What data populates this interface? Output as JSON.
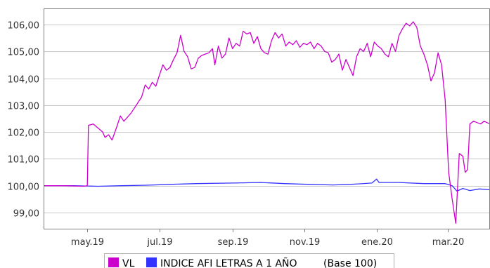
{
  "chart_data": {
    "type": "line",
    "title": "",
    "xlabel": "",
    "ylabel": "",
    "ylim": [
      98.4,
      106.6
    ],
    "y_ticks": [
      "99,00",
      "100,00",
      "101,00",
      "102,00",
      "103,00",
      "104,00",
      "105,00",
      "106,00"
    ],
    "x_range": [
      "2019-03-25",
      "2020-04-06"
    ],
    "x_ticks": [
      {
        "label": "may.19",
        "date": "2019-05-01"
      },
      {
        "label": "jul.19",
        "date": "2019-07-01"
      },
      {
        "label": "sep.19",
        "date": "2019-09-01"
      },
      {
        "label": "nov.19",
        "date": "2019-11-01"
      },
      {
        "label": "ene.20",
        "date": "2020-01-01"
      },
      {
        "label": "mar.20",
        "date": "2020-03-01"
      }
    ],
    "grid": "horizontal",
    "legend_position": "bottom",
    "legend_note": "(Base 100)",
    "series": [
      {
        "name": "VL",
        "color": "#CC00CC",
        "points": [
          [
            "2019-03-25",
            100.0
          ],
          [
            "2019-04-10",
            100.0
          ],
          [
            "2019-04-28",
            99.98
          ],
          [
            "2019-05-01",
            100.0
          ],
          [
            "2019-05-02",
            102.25
          ],
          [
            "2019-05-06",
            102.3
          ],
          [
            "2019-05-10",
            102.15
          ],
          [
            "2019-05-14",
            102.0
          ],
          [
            "2019-05-16",
            101.8
          ],
          [
            "2019-05-19",
            101.9
          ],
          [
            "2019-05-22",
            101.7
          ],
          [
            "2019-05-26",
            102.2
          ],
          [
            "2019-05-29",
            102.6
          ],
          [
            "2019-06-01",
            102.4
          ],
          [
            "2019-06-04",
            102.55
          ],
          [
            "2019-06-07",
            102.7
          ],
          [
            "2019-06-10",
            102.9
          ],
          [
            "2019-06-13",
            103.1
          ],
          [
            "2019-06-16",
            103.3
          ],
          [
            "2019-06-19",
            103.75
          ],
          [
            "2019-06-22",
            103.6
          ],
          [
            "2019-06-25",
            103.85
          ],
          [
            "2019-06-28",
            103.7
          ],
          [
            "2019-07-01",
            104.1
          ],
          [
            "2019-07-04",
            104.5
          ],
          [
            "2019-07-07",
            104.3
          ],
          [
            "2019-07-10",
            104.4
          ],
          [
            "2019-07-13",
            104.7
          ],
          [
            "2019-07-16",
            104.95
          ],
          [
            "2019-07-19",
            105.6
          ],
          [
            "2019-07-22",
            105.0
          ],
          [
            "2019-07-25",
            104.8
          ],
          [
            "2019-07-28",
            104.35
          ],
          [
            "2019-07-31",
            104.4
          ],
          [
            "2019-08-03",
            104.75
          ],
          [
            "2019-08-06",
            104.85
          ],
          [
            "2019-08-09",
            104.9
          ],
          [
            "2019-08-12",
            104.95
          ],
          [
            "2019-08-15",
            105.1
          ],
          [
            "2019-08-17",
            104.5
          ],
          [
            "2019-08-20",
            105.2
          ],
          [
            "2019-08-23",
            104.75
          ],
          [
            "2019-08-26",
            104.9
          ],
          [
            "2019-08-29",
            105.5
          ],
          [
            "2019-09-01",
            105.1
          ],
          [
            "2019-09-04",
            105.3
          ],
          [
            "2019-09-07",
            105.2
          ],
          [
            "2019-09-10",
            105.75
          ],
          [
            "2019-09-13",
            105.65
          ],
          [
            "2019-09-16",
            105.7
          ],
          [
            "2019-09-19",
            105.3
          ],
          [
            "2019-09-22",
            105.55
          ],
          [
            "2019-09-25",
            105.1
          ],
          [
            "2019-09-28",
            104.95
          ],
          [
            "2019-10-01",
            104.9
          ],
          [
            "2019-10-04",
            105.4
          ],
          [
            "2019-10-07",
            105.7
          ],
          [
            "2019-10-10",
            105.5
          ],
          [
            "2019-10-13",
            105.65
          ],
          [
            "2019-10-16",
            105.2
          ],
          [
            "2019-10-19",
            105.35
          ],
          [
            "2019-10-22",
            105.25
          ],
          [
            "2019-10-25",
            105.4
          ],
          [
            "2019-10-28",
            105.15
          ],
          [
            "2019-10-31",
            105.3
          ],
          [
            "2019-11-03",
            105.25
          ],
          [
            "2019-11-06",
            105.35
          ],
          [
            "2019-11-09",
            105.1
          ],
          [
            "2019-11-12",
            105.3
          ],
          [
            "2019-11-15",
            105.2
          ],
          [
            "2019-11-18",
            105.0
          ],
          [
            "2019-11-21",
            104.95
          ],
          [
            "2019-11-24",
            104.6
          ],
          [
            "2019-11-27",
            104.7
          ],
          [
            "2019-11-30",
            104.9
          ],
          [
            "2019-12-03",
            104.3
          ],
          [
            "2019-12-06",
            104.7
          ],
          [
            "2019-12-09",
            104.4
          ],
          [
            "2019-12-12",
            104.1
          ],
          [
            "2019-12-15",
            104.8
          ],
          [
            "2019-12-18",
            105.1
          ],
          [
            "2019-12-21",
            105.0
          ],
          [
            "2019-12-24",
            105.3
          ],
          [
            "2019-12-27",
            104.8
          ],
          [
            "2019-12-30",
            105.35
          ],
          [
            "2020-01-02",
            105.2
          ],
          [
            "2020-01-05",
            105.1
          ],
          [
            "2020-01-08",
            104.9
          ],
          [
            "2020-01-11",
            104.8
          ],
          [
            "2020-01-14",
            105.3
          ],
          [
            "2020-01-17",
            105.0
          ],
          [
            "2020-01-20",
            105.6
          ],
          [
            "2020-01-23",
            105.85
          ],
          [
            "2020-01-26",
            106.05
          ],
          [
            "2020-01-29",
            105.95
          ],
          [
            "2020-02-01",
            106.1
          ],
          [
            "2020-02-04",
            105.9
          ],
          [
            "2020-02-07",
            105.2
          ],
          [
            "2020-02-10",
            104.9
          ],
          [
            "2020-02-13",
            104.5
          ],
          [
            "2020-02-16",
            103.9
          ],
          [
            "2020-02-19",
            104.2
          ],
          [
            "2020-02-22",
            104.95
          ],
          [
            "2020-02-25",
            104.5
          ],
          [
            "2020-02-28",
            103.2
          ],
          [
            "2020-03-02",
            100.5
          ],
          [
            "2020-03-05",
            99.5
          ],
          [
            "2020-03-08",
            98.6
          ],
          [
            "2020-03-11",
            101.2
          ],
          [
            "2020-03-14",
            101.1
          ],
          [
            "2020-03-16",
            100.5
          ],
          [
            "2020-03-18",
            100.6
          ],
          [
            "2020-03-20",
            102.3
          ],
          [
            "2020-03-23",
            102.4
          ],
          [
            "2020-03-26",
            102.35
          ],
          [
            "2020-03-29",
            102.3
          ],
          [
            "2020-04-01",
            102.4
          ],
          [
            "2020-04-06",
            102.3
          ]
        ]
      },
      {
        "name": "INDICE AFI LETRAS A 1 AÑO",
        "color": "#3333FF",
        "points": [
          [
            "2019-03-25",
            100.0
          ],
          [
            "2019-04-20",
            100.0
          ],
          [
            "2019-05-10",
            99.98
          ],
          [
            "2019-05-30",
            100.0
          ],
          [
            "2019-06-20",
            100.02
          ],
          [
            "2019-07-10",
            100.05
          ],
          [
            "2019-08-01",
            100.08
          ],
          [
            "2019-09-01",
            100.1
          ],
          [
            "2019-09-25",
            100.12
          ],
          [
            "2019-10-15",
            100.08
          ],
          [
            "2019-11-05",
            100.05
          ],
          [
            "2019-11-25",
            100.03
          ],
          [
            "2019-12-10",
            100.05
          ],
          [
            "2019-12-28",
            100.1
          ],
          [
            "2020-01-01",
            100.25
          ],
          [
            "2020-01-03",
            100.12
          ],
          [
            "2020-01-20",
            100.12
          ],
          [
            "2020-02-10",
            100.08
          ],
          [
            "2020-02-28",
            100.08
          ],
          [
            "2020-03-05",
            100.0
          ],
          [
            "2020-03-09",
            99.8
          ],
          [
            "2020-03-14",
            99.9
          ],
          [
            "2020-03-20",
            99.82
          ],
          [
            "2020-03-28",
            99.88
          ],
          [
            "2020-04-06",
            99.85
          ]
        ]
      }
    ]
  }
}
